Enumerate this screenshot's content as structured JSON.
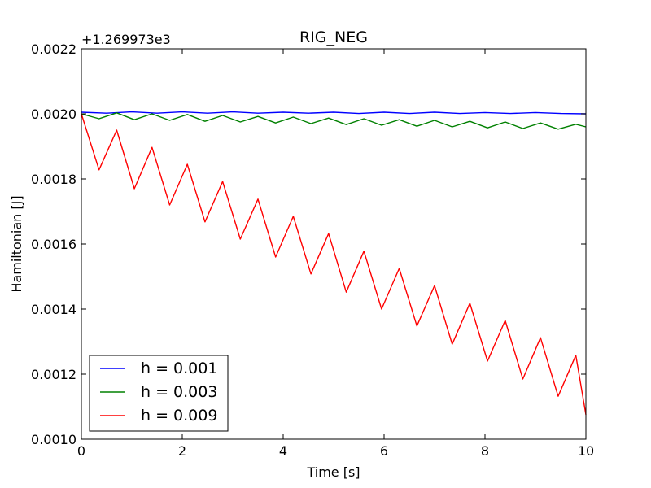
{
  "chart_data": {
    "type": "line",
    "title": "RIG_NEG",
    "xlabel": "Time [s]",
    "ylabel": "Hamiltonian [J]",
    "y_offset_label": "+1.269973e3",
    "xlim": [
      0,
      10
    ],
    "ylim": [
      0.001,
      0.0022
    ],
    "xticks": [
      0,
      2,
      4,
      6,
      8,
      10
    ],
    "xtick_labels": [
      "0",
      "2",
      "4",
      "6",
      "8",
      "10"
    ],
    "yticks": [
      0.001,
      0.0012,
      0.0014,
      0.0016,
      0.0018,
      0.002,
      0.0022
    ],
    "ytick_labels": [
      "0.0010",
      "0.0012",
      "0.0014",
      "0.0016",
      "0.0018",
      "0.0020",
      "0.0022"
    ],
    "grid": false,
    "legend_position": "lower-left",
    "series": [
      {
        "name": "h = 0.001",
        "color": "#0000ff",
        "x": [
          0,
          0.5,
          1.0,
          1.5,
          2.0,
          2.5,
          3.0,
          3.5,
          4.0,
          4.5,
          5.0,
          5.5,
          6.0,
          6.5,
          7.0,
          7.5,
          8.0,
          8.5,
          9.0,
          9.5,
          10.0
        ],
        "y": [
          0.002005,
          0.002002,
          0.002006,
          0.002002,
          0.002006,
          0.002002,
          0.002006,
          0.002002,
          0.002005,
          0.002002,
          0.002005,
          0.002001,
          0.002005,
          0.002001,
          0.002005,
          0.002001,
          0.002004,
          0.002001,
          0.002004,
          0.002001,
          0.002
        ]
      },
      {
        "name": "h = 0.003",
        "color": "#008000",
        "x": [
          0,
          0.35,
          0.7,
          1.05,
          1.4,
          1.75,
          2.1,
          2.45,
          2.8,
          3.15,
          3.5,
          3.85,
          4.2,
          4.55,
          4.9,
          5.25,
          5.6,
          5.95,
          6.3,
          6.65,
          7.0,
          7.35,
          7.7,
          8.05,
          8.4,
          8.75,
          9.1,
          9.45,
          9.8,
          10.0
        ],
        "y": [
          0.002,
          0.001985,
          0.002003,
          0.001982,
          0.002,
          0.00198,
          0.001998,
          0.001977,
          0.001995,
          0.001975,
          0.001992,
          0.001972,
          0.00199,
          0.00197,
          0.001987,
          0.001967,
          0.001985,
          0.001965,
          0.001982,
          0.001962,
          0.00198,
          0.00196,
          0.001977,
          0.001957,
          0.001975,
          0.001955,
          0.001972,
          0.001953,
          0.001968,
          0.00196
        ]
      },
      {
        "name": "h = 0.009",
        "color": "#ff0000",
        "x": [
          0,
          0.35,
          0.7,
          1.05,
          1.4,
          1.75,
          2.1,
          2.45,
          2.8,
          3.15,
          3.5,
          3.85,
          4.2,
          4.55,
          4.9,
          5.25,
          5.6,
          5.95,
          6.3,
          6.65,
          7.0,
          7.35,
          7.7,
          8.05,
          8.4,
          8.75,
          9.1,
          9.45,
          9.8,
          10.0
        ],
        "y": [
          0.002,
          0.001828,
          0.00195,
          0.00177,
          0.001897,
          0.00172,
          0.001845,
          0.001668,
          0.001792,
          0.001615,
          0.001738,
          0.00156,
          0.001685,
          0.001508,
          0.001632,
          0.001452,
          0.001578,
          0.0014,
          0.001525,
          0.001348,
          0.001472,
          0.001292,
          0.001418,
          0.00124,
          0.001365,
          0.001185,
          0.001312,
          0.001132,
          0.001258,
          0.001075
        ]
      }
    ]
  }
}
